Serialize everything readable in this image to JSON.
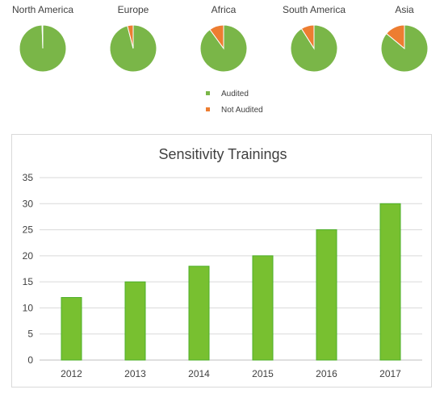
{
  "chart_data": [
    {
      "type": "pie",
      "legend": [
        {
          "label": "Audited",
          "color": "#7ab648"
        },
        {
          "label": "Not Audited",
          "color": "#ed7d31"
        }
      ],
      "legend_placement": "bottom-center",
      "pies": [
        {
          "title": "North America",
          "values": [
            99.5,
            0.5
          ]
        },
        {
          "title": "Europe",
          "values": [
            96,
            4
          ]
        },
        {
          "title": "Africa",
          "values": [
            90,
            10
          ]
        },
        {
          "title": "South America",
          "values": [
            91,
            9
          ]
        },
        {
          "title": "Asia",
          "values": [
            86,
            14
          ]
        }
      ]
    },
    {
      "type": "bar",
      "title": "Sensitivity Trainings",
      "categories": [
        "2012",
        "2013",
        "2014",
        "2015",
        "2016",
        "2017"
      ],
      "values": [
        12,
        15,
        18,
        20,
        25,
        30
      ],
      "ylim": [
        0,
        35
      ],
      "yticks": [
        0,
        5,
        10,
        15,
        20,
        25,
        30,
        35
      ],
      "grid": true,
      "bar_color": "#78c030",
      "bar_edge": "#4caf27"
    }
  ]
}
